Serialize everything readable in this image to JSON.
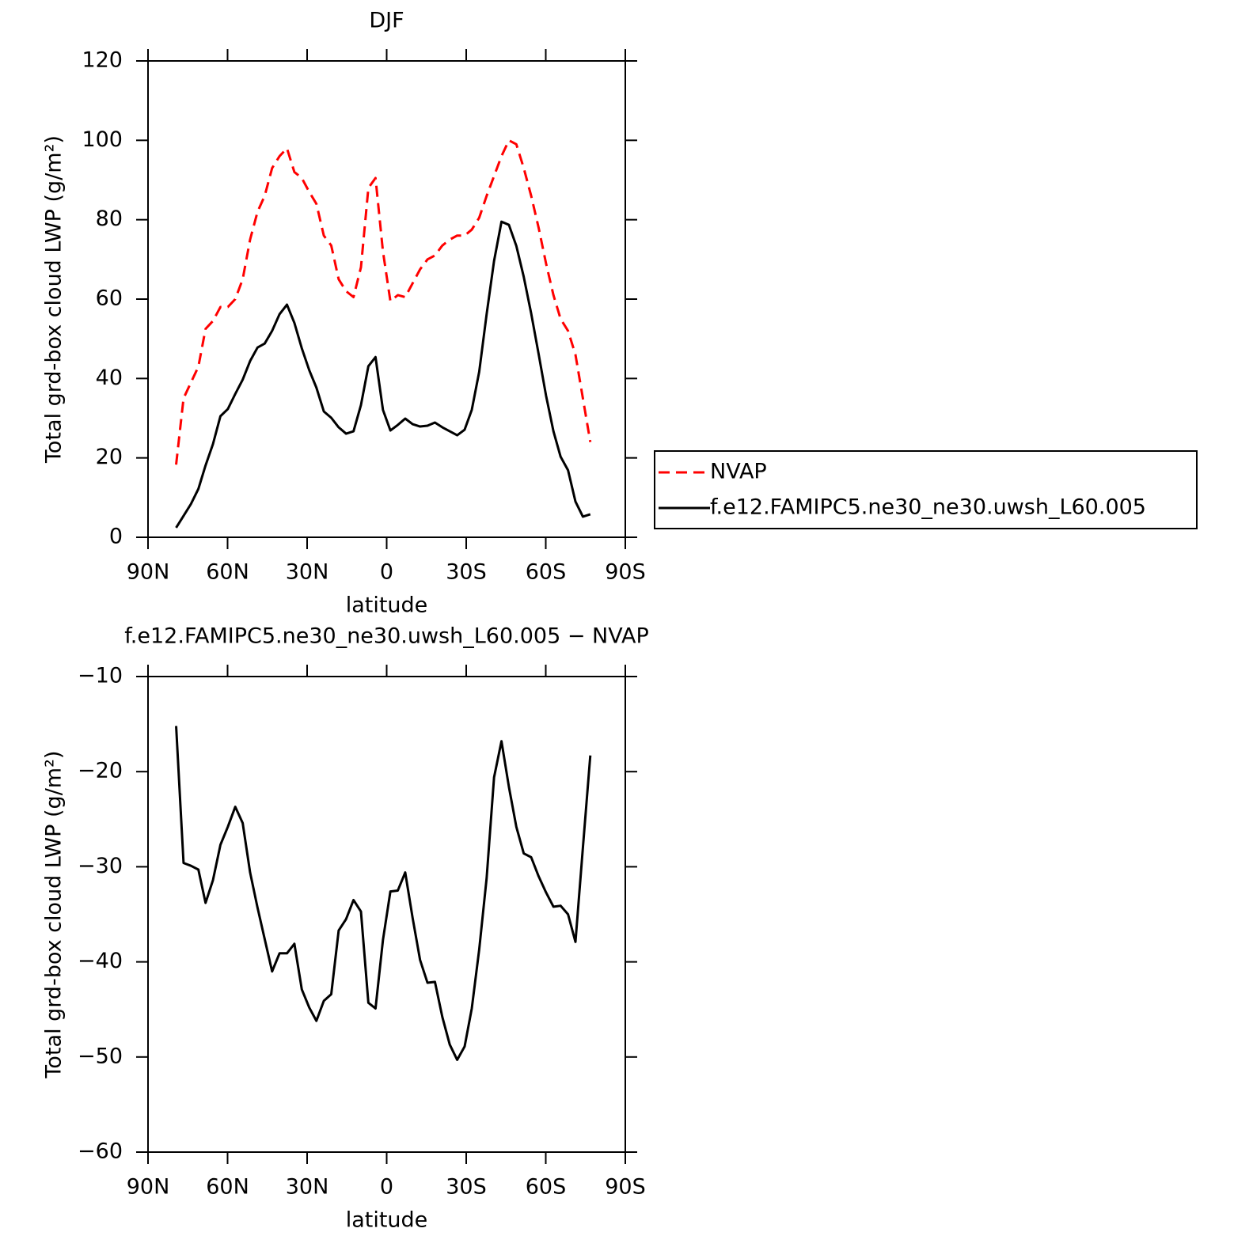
{
  "chart_data": [
    {
      "type": "line",
      "title": "DJF",
      "x_label": "latitude",
      "y_label": "Total grd-box cloud LWP (g/m²)",
      "x": [
        79.4,
        76.6,
        73.8,
        71.0,
        68.3,
        65.5,
        62.7,
        59.9,
        57.1,
        54.3,
        51.5,
        48.7,
        46.0,
        43.2,
        40.4,
        37.6,
        34.8,
        32.0,
        29.2,
        26.5,
        23.7,
        20.9,
        18.1,
        15.3,
        12.5,
        9.7,
        6.9,
        4.2,
        1.4,
        -1.4,
        -4.2,
        -7.0,
        -9.8,
        -12.6,
        -15.4,
        -18.2,
        -21.0,
        -23.8,
        -26.6,
        -29.4,
        -32.1,
        -34.9,
        -37.7,
        -40.5,
        -43.3,
        -46.1,
        -48.9,
        -51.7,
        -54.5,
        -57.3,
        -60.1,
        -62.9,
        -65.6,
        -68.4,
        -71.2,
        -74.0,
        -76.8
      ],
      "xlim": [
        90,
        -90
      ],
      "xticks": [
        {
          "value": 90,
          "label": "90N"
        },
        {
          "value": 60,
          "label": "60N"
        },
        {
          "value": 30,
          "label": "30N"
        },
        0,
        {
          "value": -30,
          "label": "30S"
        },
        {
          "value": -60,
          "label": "60S"
        },
        {
          "value": -90,
          "label": "90S"
        }
      ],
      "ylim": [
        0,
        120
      ],
      "yticks": [
        0,
        20,
        40,
        60,
        80,
        100,
        120
      ],
      "legend": "right",
      "series": [
        {
          "name": "NVAP",
          "color": "#ff0000",
          "line_style": "dashed",
          "values": [
            18.3,
            35,
            39,
            43,
            52.5,
            54.5,
            58,
            58,
            60,
            65,
            75,
            82,
            86,
            93,
            96,
            98,
            92,
            90.5,
            87,
            84,
            76,
            73.5,
            65,
            62,
            60.5,
            68,
            88,
            90.5,
            72,
            59.5,
            61,
            60.5,
            64,
            67.5,
            70,
            71,
            73.5,
            75,
            76,
            76,
            77.5,
            80.5,
            86,
            91,
            96,
            100,
            99,
            93,
            86,
            78,
            69,
            61,
            55,
            52,
            46,
            35,
            24
          ]
        },
        {
          "name": "f.e12.FAMIPC5.ne30_ne30.uwsh_L60.005",
          "color": "#000000",
          "line_style": "solid",
          "values": [
            2.4,
            5.4,
            8.4,
            12.2,
            18.1,
            23.5,
            30.5,
            32.3,
            36.1,
            39.7,
            44.4,
            47.8,
            48.8,
            52.0,
            56.2,
            58.6,
            54.0,
            47.6,
            42.1,
            37.7,
            31.7,
            30.1,
            27.7,
            26.1,
            26.7,
            33.3,
            43.1,
            45.4,
            32.1,
            26.9,
            28.3,
            29.9,
            28.5,
            27.9,
            28.1,
            28.9,
            27.7,
            26.7,
            25.7,
            27.1,
            32.1,
            41.7,
            56.2,
            69.6,
            79.5,
            78.7,
            73.4,
            65.6,
            56.4,
            46.2,
            35.7,
            26.7,
            20.3,
            16.9,
            9.0,
            5.2,
            5.8
          ]
        }
      ]
    },
    {
      "type": "line",
      "title": "f.e12.FAMIPC5.ne30_ne30.uwsh_L60.005 − NVAP",
      "x_label": "latitude",
      "y_label": "Total grd-box cloud LWP (g/m²)",
      "x": [
        79.4,
        76.6,
        73.8,
        71.0,
        68.3,
        65.5,
        62.7,
        59.9,
        57.1,
        54.3,
        51.5,
        48.7,
        46.0,
        43.2,
        40.4,
        37.6,
        34.8,
        32.0,
        29.2,
        26.5,
        23.7,
        20.9,
        18.1,
        15.3,
        12.5,
        9.7,
        6.9,
        4.2,
        1.4,
        -1.4,
        -4.2,
        -7.0,
        -9.8,
        -12.6,
        -15.4,
        -18.2,
        -21.0,
        -23.8,
        -26.6,
        -29.4,
        -32.1,
        -34.9,
        -37.7,
        -40.5,
        -43.3,
        -46.1,
        -48.9,
        -51.7,
        -54.5,
        -57.3,
        -60.1,
        -62.9,
        -65.6,
        -68.4,
        -71.2,
        -74.0,
        -76.8
      ],
      "xlim": [
        90,
        -90
      ],
      "xticks": [
        {
          "value": 90,
          "label": "90N"
        },
        {
          "value": 60,
          "label": "60N"
        },
        {
          "value": 30,
          "label": "30N"
        },
        0,
        {
          "value": -30,
          "label": "30S"
        },
        {
          "value": -60,
          "label": "60S"
        },
        {
          "value": -90,
          "label": "90S"
        }
      ],
      "ylim": [
        -60,
        -10
      ],
      "yticks": [
        {
          "value": -60,
          "label": "−60"
        },
        {
          "value": -50,
          "label": "−50"
        },
        {
          "value": -40,
          "label": "−40"
        },
        {
          "value": -30,
          "label": "−30"
        },
        {
          "value": -20,
          "label": "−20"
        },
        {
          "value": -10,
          "label": "−10"
        }
      ],
      "series": [
        {
          "color": "#000000",
          "line_style": "solid",
          "values": [
            -15.2,
            -29.6,
            -29.9,
            -30.3,
            -33.8,
            -31.4,
            -27.7,
            -25.8,
            -23.7,
            -25.4,
            -30.6,
            -34.3,
            -37.6,
            -41.0,
            -39.1,
            -39.1,
            -38.1,
            -42.9,
            -44.8,
            -46.2,
            -44.1,
            -43.4,
            -36.7,
            -35.5,
            -33.5,
            -34.7,
            -44.3,
            -44.9,
            -37.7,
            -32.6,
            -32.5,
            -30.6,
            -35.4,
            -39.8,
            -42.2,
            -42.1,
            -45.8,
            -48.7,
            -50.3,
            -48.9,
            -44.9,
            -38.7,
            -31.2,
            -20.6,
            -16.8,
            -21.6,
            -25.8,
            -28.6,
            -29.0,
            -31.0,
            -32.7,
            -34.2,
            -34.1,
            -35.0,
            -37.9,
            -28.0,
            -18.3
          ]
        }
      ]
    }
  ]
}
